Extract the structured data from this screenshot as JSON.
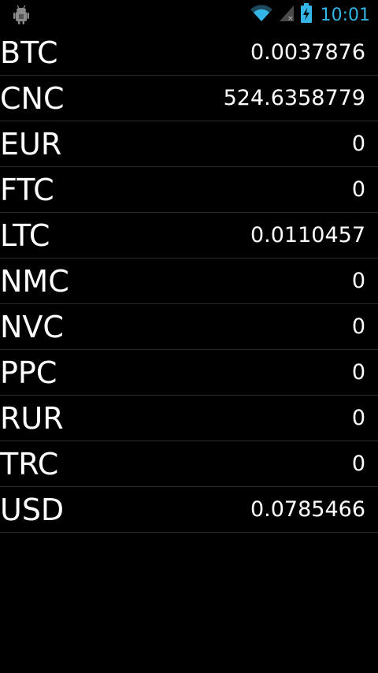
{
  "status_bar": {
    "time": "10:01",
    "left_icon": "android-debug-icon",
    "wifi_icon": "wifi-icon",
    "signal_icon": "cell-signal-icon",
    "battery_icon": "battery-charging-icon",
    "accent_color": "#33b5e5"
  },
  "balances": [
    {
      "code": "BTC",
      "amount": "0.0037876"
    },
    {
      "code": "CNC",
      "amount": "524.6358779"
    },
    {
      "code": "EUR",
      "amount": "0"
    },
    {
      "code": "FTC",
      "amount": "0"
    },
    {
      "code": "LTC",
      "amount": "0.0110457"
    },
    {
      "code": "NMC",
      "amount": "0"
    },
    {
      "code": "NVC",
      "amount": "0"
    },
    {
      "code": "PPC",
      "amount": "0"
    },
    {
      "code": "RUR",
      "amount": "0"
    },
    {
      "code": "TRC",
      "amount": "0"
    },
    {
      "code": "USD",
      "amount": "0.0785466"
    }
  ]
}
